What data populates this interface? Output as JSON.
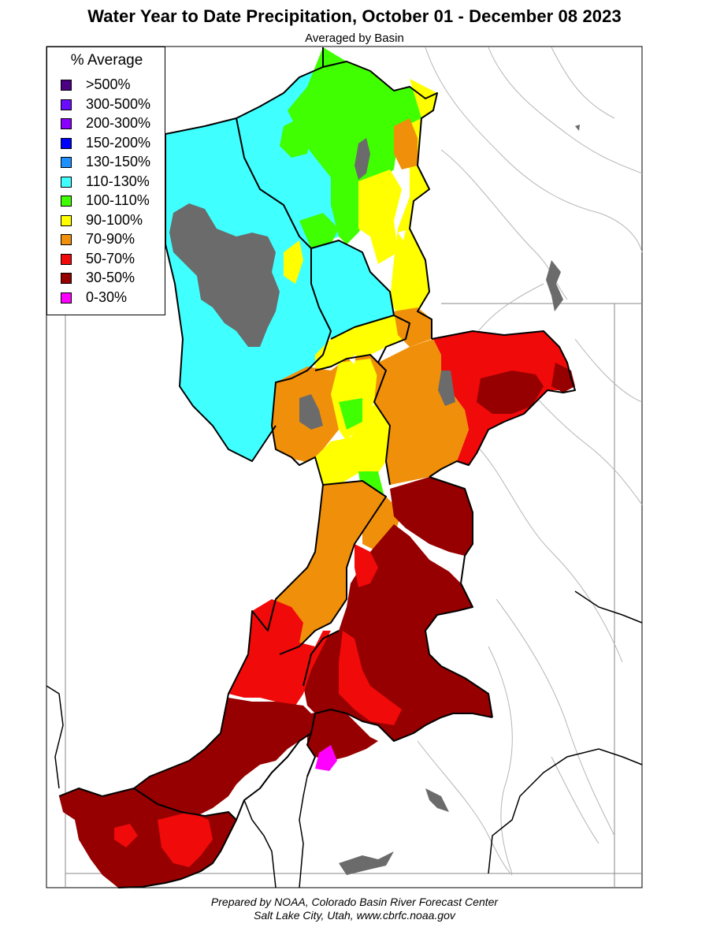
{
  "title": "Water Year to Date Precipitation, October 01  - December 08 2023",
  "subtitle": "Averaged by Basin",
  "legend": {
    "title": "% Average",
    "items": [
      {
        "label": ">500%",
        "color": "#4b0082"
      },
      {
        "label": "300-500%",
        "color": "#6a0dff"
      },
      {
        "label": "200-300%",
        "color": "#8a00ff"
      },
      {
        "label": "150-200%",
        "color": "#0000ff"
      },
      {
        "label": "130-150%",
        "color": "#1e90ff"
      },
      {
        "label": "110-130%",
        "color": "#40ffff"
      },
      {
        "label": "100-110%",
        "color": "#40ff00"
      },
      {
        "label": "90-100%",
        "color": "#ffff00"
      },
      {
        "label": "70-90%",
        "color": "#f0900a"
      },
      {
        "label": "50-70%",
        "color": "#f00a0a"
      },
      {
        "label": "30-50%",
        "color": "#960000"
      },
      {
        "label": "0-30%",
        "color": "#ff00ff"
      }
    ]
  },
  "colors": {
    "lake": "#6b6b6b",
    "boundary": "#000000",
    "rivers": "#aaaaaa",
    "state_lines": "#888888"
  },
  "footer": {
    "line1": "Prepared by NOAA, Colorado Basin River Forecast Center",
    "line2": "Salt Lake City, Utah, www.cbrfc.noaa.gov"
  }
}
